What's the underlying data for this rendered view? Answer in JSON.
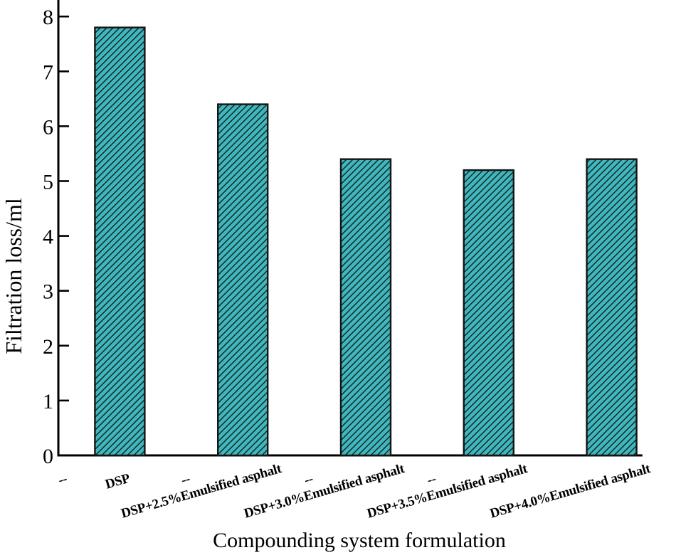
{
  "chart_data": {
    "type": "bar",
    "xlabel": "Compounding system formulation",
    "ylabel": "Filtration loss/ml",
    "ylim": [
      0,
      8.3
    ],
    "yticks": [
      0,
      1,
      2,
      3,
      4,
      5,
      6,
      7,
      8
    ],
    "categories": [
      "DSP",
      "DSP+2.5%Emulsified asphalt",
      "DSP+3.0%Emulsified asphalt",
      "DSP+3.5%Emulsified asphalt",
      "DSP+4.0%Emulsified asphalt"
    ],
    "values": [
      7.8,
      6.4,
      5.4,
      5.2,
      5.4
    ],
    "bar_x_positions": [
      1,
      3,
      5,
      7,
      9
    ],
    "x_axis_span": [
      0,
      9.5
    ],
    "x_ticks": [
      {
        "pos": 0,
        "label": "--"
      },
      {
        "pos": 1,
        "label": "DSP"
      },
      {
        "pos": 2,
        "label": "--"
      },
      {
        "pos": 3,
        "label": "DSP+2.5%Emulsified asphalt"
      },
      {
        "pos": 4,
        "label": "--"
      },
      {
        "pos": 5,
        "label": "DSP+3.0%Emulsified asphalt"
      },
      {
        "pos": 6,
        "label": "--"
      },
      {
        "pos": 7,
        "label": "DSP+3.5%Emulsified asphalt"
      },
      {
        "pos": 9,
        "label": "DSP+4.0%Emulsified asphalt"
      }
    ],
    "tick_label_rotation_deg": 16,
    "grid": false,
    "legend": false,
    "hatch": "forward-diagonal",
    "colors": {
      "bar_fill": "#3cb8be",
      "bar_edge": "#141414",
      "hatch_line": "#1c1c1c",
      "axis": "#000000",
      "text": "#000000",
      "background": "#ffffff"
    }
  }
}
